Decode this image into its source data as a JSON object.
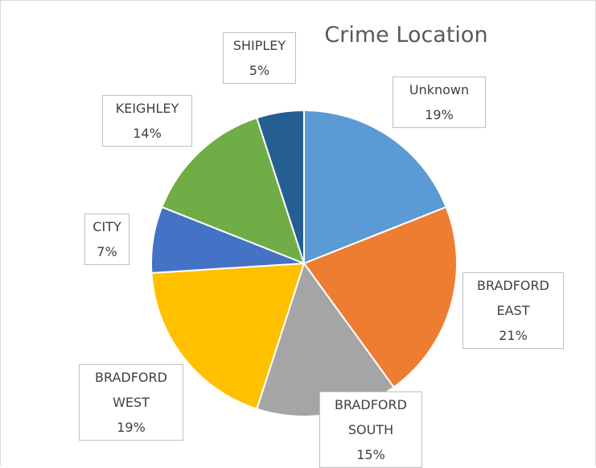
{
  "chart_data": {
    "type": "pie",
    "title": "Crime Location",
    "categories": [
      "Unknown",
      "BRADFORD EAST",
      "BRADFORD SOUTH",
      "BRADFORD WEST",
      "CITY",
      "KEIGHLEY",
      "SHIPLEY"
    ],
    "values": [
      19,
      21,
      15,
      19,
      7,
      14,
      5
    ],
    "value_labels": [
      "19%",
      "21%",
      "15%",
      "19%",
      "7%",
      "14%",
      "5%"
    ],
    "colors": [
      "#5b9bd5",
      "#ed7d31",
      "#a5a5a5",
      "#ffc000",
      "#4472c4",
      "#70ad47",
      "#255e91"
    ]
  }
}
